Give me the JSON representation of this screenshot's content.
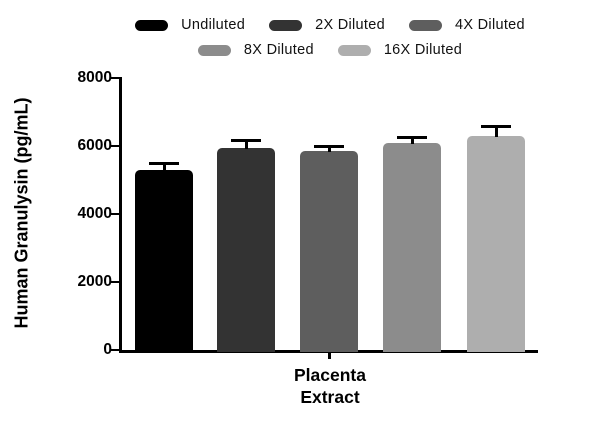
{
  "figure": {
    "background": "#ffffff"
  },
  "legend": {
    "items": [
      {
        "label": "Undiluted",
        "color": "#000000"
      },
      {
        "label": "2X Diluted",
        "color": "#333333"
      },
      {
        "label": "4X Diluted",
        "color": "#5e5e5e"
      },
      {
        "label": "8X Diluted",
        "color": "#8c8c8c"
      },
      {
        "label": "16X Diluted",
        "color": "#aeaeae"
      }
    ]
  },
  "chart_data": {
    "type": "bar",
    "title": "",
    "ylabel": "Human Granulysin (pg/mL)",
    "xlabel": "Placenta Extract",
    "xlabel_lines": [
      "Placenta",
      "Extract"
    ],
    "categories": [
      "Undiluted",
      "2X Diluted",
      "4X Diluted",
      "8X Diluted",
      "16X Diluted"
    ],
    "series": [
      {
        "name": "Human Granulysin (pg/mL)",
        "values": [
          5300,
          5950,
          5850,
          6100,
          6300
        ]
      }
    ],
    "values": [
      5300,
      5950,
      5850,
      6100,
      6300
    ],
    "error_plus": [
      200,
      225,
      150,
      150,
      260
    ],
    "bar_colors": [
      "#000000",
      "#333333",
      "#5e5e5e",
      "#8c8c8c",
      "#aeaeae"
    ],
    "ylim": [
      0,
      8000
    ],
    "yticks": [
      0,
      2000,
      4000,
      6000,
      8000
    ],
    "grid": "off",
    "legend_position": "top"
  }
}
